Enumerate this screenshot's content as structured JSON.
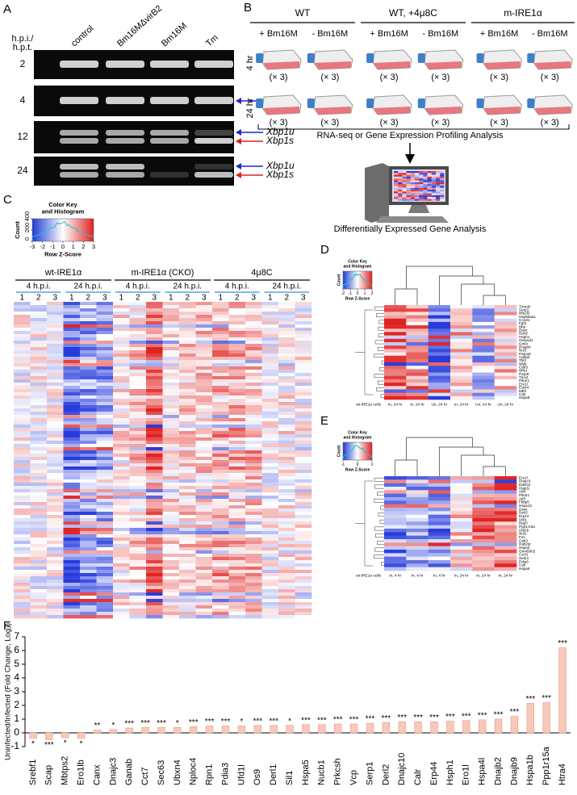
{
  "panel_a": {
    "label": "A",
    "row_header": [
      "h.p.i./",
      "h.p.t."
    ],
    "columns": [
      "control",
      "Bm16MΔvirB2",
      "Bm16M",
      "Tm"
    ],
    "rows": [
      {
        "label": "2",
        "markers": []
      },
      {
        "label": "4",
        "markers": [
          "Xbp1u"
        ]
      },
      {
        "label": "12",
        "markers": [
          "Xbp1u",
          "Xbp1s"
        ]
      },
      {
        "label": "24",
        "markers": [
          "Xbp1u",
          "Xbp1s"
        ]
      }
    ]
  },
  "panel_b": {
    "label": "B",
    "groups": [
      "WT",
      "WT, +4μ8C",
      "m-IRE1α"
    ],
    "conditions": [
      "+ Bm16M",
      "- Bm16M"
    ],
    "times": [
      "4 hr",
      "24 hr"
    ],
    "replicates": "(× 3)",
    "step1": "RNA-seq or Gene Expression Profiling Analysis",
    "step2": "Differentially Expressed Gene Analysis"
  },
  "panel_c": {
    "label": "C",
    "color_key": {
      "title": [
        "Color Key",
        "and Histogram"
      ],
      "ylabel": "Count",
      "xlabel": "Row Z-Score",
      "xticks": [
        -3,
        -2,
        -1,
        0,
        1,
        2,
        3
      ],
      "yticks": [
        0,
        200,
        400
      ]
    },
    "groups": [
      {
        "name": "wt-IRE1α",
        "times": [
          "4 h.p.i.",
          "24 h.p.i."
        ]
      },
      {
        "name": "m-IRE1α (CKO)",
        "times": [
          "4 h.p.i.",
          "24 h.p.i."
        ]
      },
      {
        "name": "4μ8C",
        "times": [
          "4 h.p.i.",
          "24 h.p.i."
        ]
      }
    ],
    "replicates": [
      "1",
      "2",
      "3"
    ]
  },
  "panel_d": {
    "label": "D",
    "color_key": {
      "title": [
        "Color Key",
        "and Histogram"
      ],
      "ylabel": "Count",
      "xlabel": "Row Z-Score",
      "xticks": [
        -2,
        -1,
        0,
        1,
        2
      ]
    },
    "genes": [
      "Tmed2",
      "Serp1",
      "Nfe2l2",
      "Hsp90aa1",
      "Ccnd1",
      "Fgf2",
      "Bfar",
      "Daxx",
      "Derl2",
      "Hsph1",
      "Herpud1",
      "Gml4",
      "Dnajb9",
      "Nol1",
      "Parp16",
      "Cebpb",
      "Tbl2",
      "Nfyb",
      "Calr3",
      "Wfs1",
      "Parp6",
      "Tmx4",
      "Pik3r1",
      "Ero1l",
      "Erp44",
      "Mbtf",
      "Calr",
      "Hspa8"
    ],
    "columns": [
      "In, 24 hr",
      "In, 24 hr",
      "Un, 24 hr",
      "In, 24 hr",
      "Un, 24 hr",
      "Un, 24 hr"
    ],
    "sample_label": "wt-IRE1α cells"
  },
  "panel_e": {
    "label": "E",
    "color_key": {
      "title": [
        "Color Key",
        "and Histogram"
      ],
      "ylabel": "Count",
      "xlabel": "Row Z-Score",
      "xticks": [
        -1,
        0,
        1
      ]
    },
    "genes": [
      "Ero1l",
      "Dnajc3",
      "Edem2",
      "Hspd1",
      "Atf4",
      "Pik3r1",
      "Atf3",
      "Fkbp5",
      "Hspa13",
      "Daxx",
      "Derl2",
      "Erp44",
      "Ufd1",
      "Bag3",
      "Ppp1r15a",
      "Ufd1b",
      "Nol1",
      "Fos",
      "Calr3",
      "Dab2ip",
      "Hspa2",
      "Gm45902",
      "Cxcl1",
      "Serp1",
      "Pdia6",
      "Calr",
      "Hspa5"
    ],
    "columns": [
      "In, 4 hr",
      "In, 4 hr",
      "In, 4 hr",
      "In, 24 hr",
      "In, 24 hr",
      "In, 24 hr"
    ],
    "sample_label": "wt-IRE1α cells"
  },
  "chart_data": {
    "type": "bar",
    "label": "F",
    "ylabel": "Uninfected/Infected (Fold Change, Log₂)",
    "categories": [
      "Srebf1",
      "Scap",
      "Mbtps2",
      "Ero1lb",
      "Canx",
      "Dnajc3",
      "Ganab",
      "Cct7",
      "Sec63",
      "Ubxn4",
      "Nploc4",
      "Rpn1",
      "Pdia3",
      "Ufd1l",
      "Os9",
      "Derl1",
      "Sil1",
      "Hspa5",
      "Nucb1",
      "Prkcsh",
      "Vcp",
      "Serp1",
      "Derl2",
      "Dnajc10",
      "Calr",
      "Erp44",
      "Hsph1",
      "Ero1l",
      "Hspa4l",
      "Dnajb2",
      "Dnajb9",
      "Hspa1b",
      "Ppp1r15a",
      "Htra4"
    ],
    "values": [
      -0.4,
      -0.5,
      -0.35,
      -0.4,
      0.2,
      0.25,
      0.35,
      0.4,
      0.4,
      0.4,
      0.45,
      0.5,
      0.5,
      0.5,
      0.55,
      0.55,
      0.55,
      0.6,
      0.6,
      0.65,
      0.65,
      0.7,
      0.75,
      0.8,
      0.8,
      0.8,
      0.85,
      0.9,
      0.95,
      1.0,
      1.2,
      2.15,
      2.2,
      6.2
    ],
    "annotations": [
      "*",
      "***",
      "*",
      "*",
      "**",
      "*",
      "***",
      "***",
      "***",
      "*",
      "***",
      "***",
      "***",
      "*",
      "***",
      "***",
      "*",
      "***",
      "***",
      "***",
      "***",
      "***",
      "***",
      "***",
      "***",
      "***",
      "***",
      "***",
      "***",
      "***",
      "***",
      "***",
      "***",
      "***"
    ],
    "color": "#f7c9b9",
    "edge_color": "#e59a83",
    "annotation_color": "#3f6fd1",
    "ylim": [
      -1,
      7
    ],
    "yticks": [
      -1,
      0,
      1,
      2,
      3,
      4,
      5,
      6,
      7
    ]
  }
}
